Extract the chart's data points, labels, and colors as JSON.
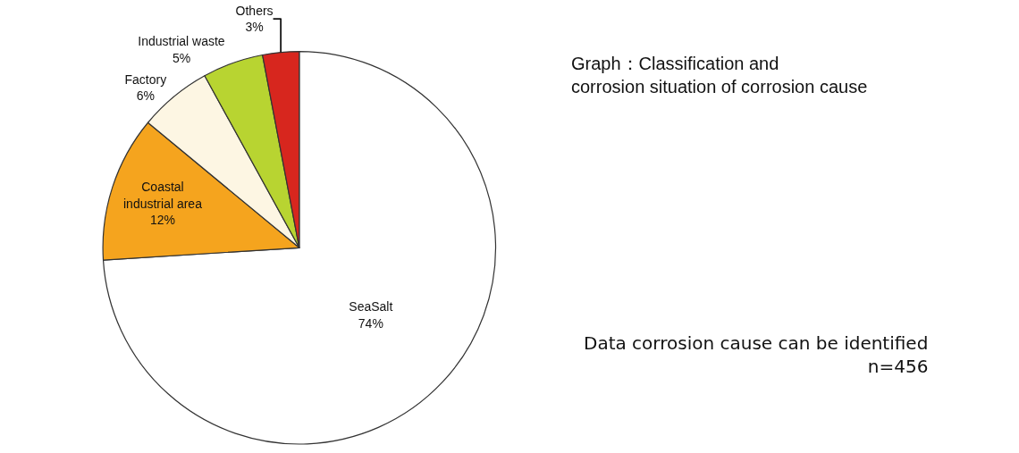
{
  "chart_data": {
    "type": "pie",
    "title": "Graph：Classification and\ncorrosion situation of corrosion cause",
    "categories": [
      "SeaSalt",
      "Coastal industrial area",
      "Factory",
      "Industrial waste",
      "Others"
    ],
    "values": [
      74,
      12,
      6,
      5,
      3
    ],
    "value_labels": [
      "74%",
      "12%",
      "6%",
      "5%",
      "3%"
    ],
    "colors": [
      "#ffffff",
      "#f5a41e",
      "#fdf6e3",
      "#b8d431",
      "#d7261e"
    ],
    "annotations": [
      "Data corrosion cause can be identified\nn=456"
    ],
    "legend": false
  }
}
